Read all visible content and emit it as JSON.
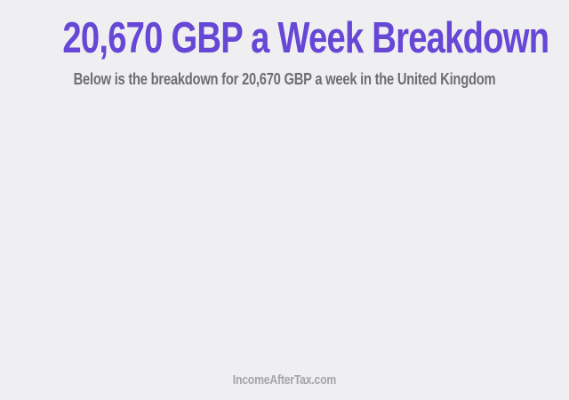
{
  "header": {
    "title": "20,670 GBP a Week Breakdown",
    "subtitle": "Below is the breakdown for 20,670 GBP a week in the United Kingdom"
  },
  "footer": {
    "watermark": "IncomeAfterTax.com"
  },
  "colors": {
    "background": "#efeef0",
    "title": "#6647d6",
    "subtitle": "#6e6f71",
    "watermark": "#a4a5a7"
  }
}
